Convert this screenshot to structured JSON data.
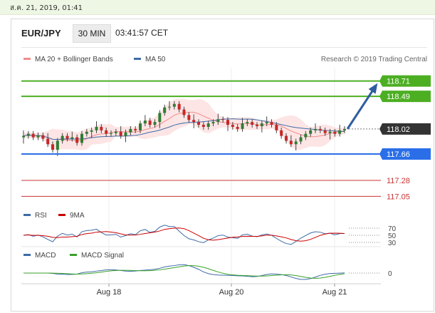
{
  "date_label": "ส.ค. 21, 2019, 01:41",
  "header": {
    "symbol": "EUR/JPY",
    "timeframe": "30 MIN",
    "time": "03:41:57 CET"
  },
  "legend": [
    {
      "label": "MA 20 + Bollinger Bands",
      "color": "#f28b8b"
    },
    {
      "label": "MA 50",
      "color": "#3d6ba8"
    }
  ],
  "copyright": "Research © 2019 Trading Central",
  "colors": {
    "up": "#2e7d32",
    "down": "#c62828",
    "resistance": "#4caf22",
    "support": "#2a6fe8",
    "ma50": "#3d6ba8",
    "ma20": "#f28b8b",
    "band": "#fde0e0",
    "arrow": "#2f5d9e",
    "current": "#333333"
  },
  "chart_data": [
    {
      "type": "candlestick",
      "title": "EUR/JPY",
      "xlabels": [
        "Aug 18",
        "Aug 20",
        "Aug 21"
      ],
      "ylim": [
        116.9,
        118.85
      ],
      "close": [
        117.92,
        117.95,
        117.9,
        117.93,
        117.88,
        117.8,
        117.72,
        117.85,
        117.92,
        117.88,
        117.9,
        117.82,
        117.95,
        117.98,
        118.0,
        118.05,
        118.0,
        117.95,
        117.96,
        117.98,
        117.92,
        117.97,
        118.02,
        118.0,
        118.1,
        118.14,
        118.08,
        118.12,
        118.25,
        118.33,
        118.34,
        118.38,
        118.3,
        118.22,
        118.15,
        118.12,
        118.08,
        118.05,
        118.1,
        118.12,
        118.16,
        118.15,
        118.08,
        118.05,
        118.02,
        118.1,
        118.12,
        118.08,
        118.06,
        118.1,
        118.12,
        118.08,
        118.0,
        117.92,
        117.85,
        117.8,
        117.84,
        117.9,
        117.95,
        118.0,
        118.02,
        118.0,
        117.96,
        117.98,
        117.95,
        118.0,
        118.02
      ],
      "levels": {
        "resistance": [
          118.71,
          118.49
        ],
        "current": 118.02,
        "support": [
          117.66,
          117.28,
          117.05
        ]
      },
      "target_arrow": {
        "to": 118.71
      }
    },
    {
      "type": "line",
      "title": "RSI",
      "series": [
        {
          "name": "RSI",
          "color": "#3d6ba8"
        },
        {
          "name": "9MA",
          "color": "#cc0000"
        }
      ],
      "levels": [
        70,
        50,
        30
      ]
    },
    {
      "type": "line",
      "title": "MACD",
      "series": [
        {
          "name": "MACD",
          "color": "#3d6ba8"
        },
        {
          "name": "MACD Signal",
          "color": "#3aa12a"
        }
      ],
      "levels": [
        0
      ]
    }
  ]
}
